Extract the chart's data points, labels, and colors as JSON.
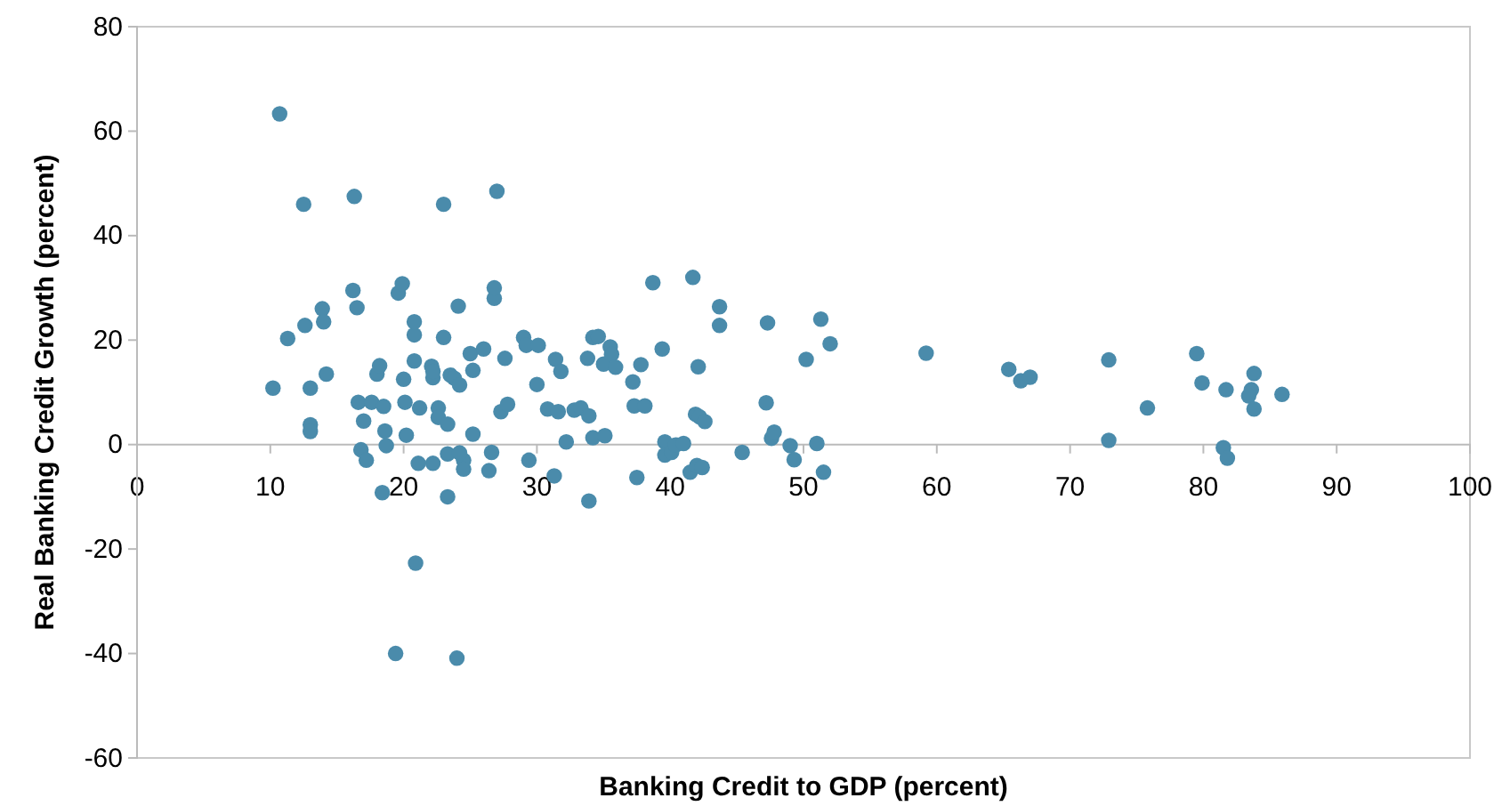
{
  "chart_data": {
    "type": "scatter",
    "xlabel": "Banking Credit to GDP (percent)",
    "ylabel": "Real Banking Credit Growth (percent)",
    "xlim": [
      0,
      100
    ],
    "ylim": [
      -60,
      80
    ],
    "xticks": [
      0,
      10,
      20,
      30,
      40,
      50,
      60,
      70,
      80,
      90,
      100
    ],
    "yticks": [
      -60,
      -40,
      -20,
      0,
      20,
      40,
      60,
      80
    ],
    "grid": false,
    "marker": "circle",
    "series": [
      {
        "color": "#4a8bab",
        "x": [
          10.7,
          12.5,
          16.3,
          23,
          27,
          10.2,
          11.3,
          12.6,
          13,
          13,
          13,
          13.9,
          14,
          14.2,
          16.2,
          16.5,
          16.6,
          17,
          16.8,
          17.2,
          17.6,
          18,
          18.2,
          18.5,
          18.6,
          18.7,
          18.4,
          19.4,
          20.1,
          19.6,
          19.9,
          20,
          20.2,
          20.8,
          20.8,
          20.8,
          21.2,
          21.1,
          20.9,
          22.1,
          22.2,
          22.2,
          22.6,
          22.6,
          22.2,
          23,
          23.3,
          23.3,
          23.5,
          23.3,
          23.8,
          24.1,
          24.2,
          24.5,
          24.5,
          24,
          24.2,
          25,
          25.2,
          25.2,
          26,
          26.4,
          26.6,
          26.8,
          26.8,
          27.6,
          27.3,
          27.8,
          29,
          29.2,
          29.4,
          30.1,
          30,
          30.8,
          31.3,
          31.4,
          31.8,
          31.6,
          32.2,
          32.8,
          33.3,
          33.8,
          33.9,
          33.9,
          34.2,
          34.2,
          34.6,
          35,
          35.1,
          35.5,
          35.6,
          35.9,
          37.3,
          37.2,
          37.8,
          37.5,
          38.1,
          38.7,
          39.4,
          39.6,
          39.6,
          40.1,
          40.4,
          41,
          41.5,
          41.7,
          42,
          42.1,
          41.9,
          42.2,
          42.4,
          42.6,
          43.7,
          43.7,
          45.4,
          47.2,
          47.3,
          47.6,
          47.8,
          49,
          49.3,
          50.2,
          51,
          51.3,
          51.5,
          52,
          59.2,
          65.4,
          66.3,
          67,
          72.9,
          72.9,
          75.8,
          79.5,
          79.9,
          81.7,
          81.5,
          81.8,
          83.8,
          83.6,
          83.4,
          83.8,
          85.9
        ],
        "values": [
          63.3,
          46,
          47.5,
          46,
          48.5,
          10.8,
          20.3,
          22.8,
          10.8,
          3.8,
          2.5,
          26,
          23.5,
          13.5,
          29.5,
          26.2,
          8.1,
          4.5,
          -1,
          -3,
          8.1,
          13.5,
          15.1,
          7.3,
          2.6,
          -0.2,
          -9.2,
          -40,
          8.1,
          29,
          30.8,
          12.5,
          1.8,
          21,
          23.5,
          16,
          7,
          -3.6,
          -22.7,
          15,
          12.8,
          14,
          7,
          5.2,
          -3.6,
          20.5,
          3.9,
          -10,
          13.3,
          -1.8,
          12.7,
          26.5,
          11.4,
          -3,
          -4.7,
          -40.9,
          -1.6,
          17.4,
          14.2,
          2,
          18.3,
          -5,
          -1.5,
          28,
          30,
          16.5,
          6.3,
          7.7,
          20.5,
          19,
          -3,
          19,
          11.5,
          6.8,
          -6,
          16.3,
          14,
          6.3,
          0.5,
          6.6,
          7,
          16.5,
          5.5,
          -10.8,
          1.3,
          20.5,
          20.7,
          15.4,
          1.7,
          18.7,
          17.3,
          14.8,
          7.4,
          12,
          15.3,
          -6.3,
          7.4,
          31,
          18.3,
          0.5,
          -2,
          -1.5,
          -0.1,
          0.2,
          -5.3,
          32,
          -4,
          14.9,
          5.8,
          5.3,
          -4.4,
          4.4,
          26.4,
          22.8,
          -1.5,
          8,
          23.3,
          1.2,
          2.4,
          -0.2,
          -2.9,
          16.3,
          0.2,
          24,
          -5.3,
          19.3,
          17.5,
          14.4,
          12.2,
          12.9,
          16.2,
          0.8,
          7,
          17.4,
          11.8,
          10.5,
          -0.6,
          -2.6,
          13.6,
          10.5,
          9.3,
          6.8,
          9.6
        ]
      }
    ]
  }
}
